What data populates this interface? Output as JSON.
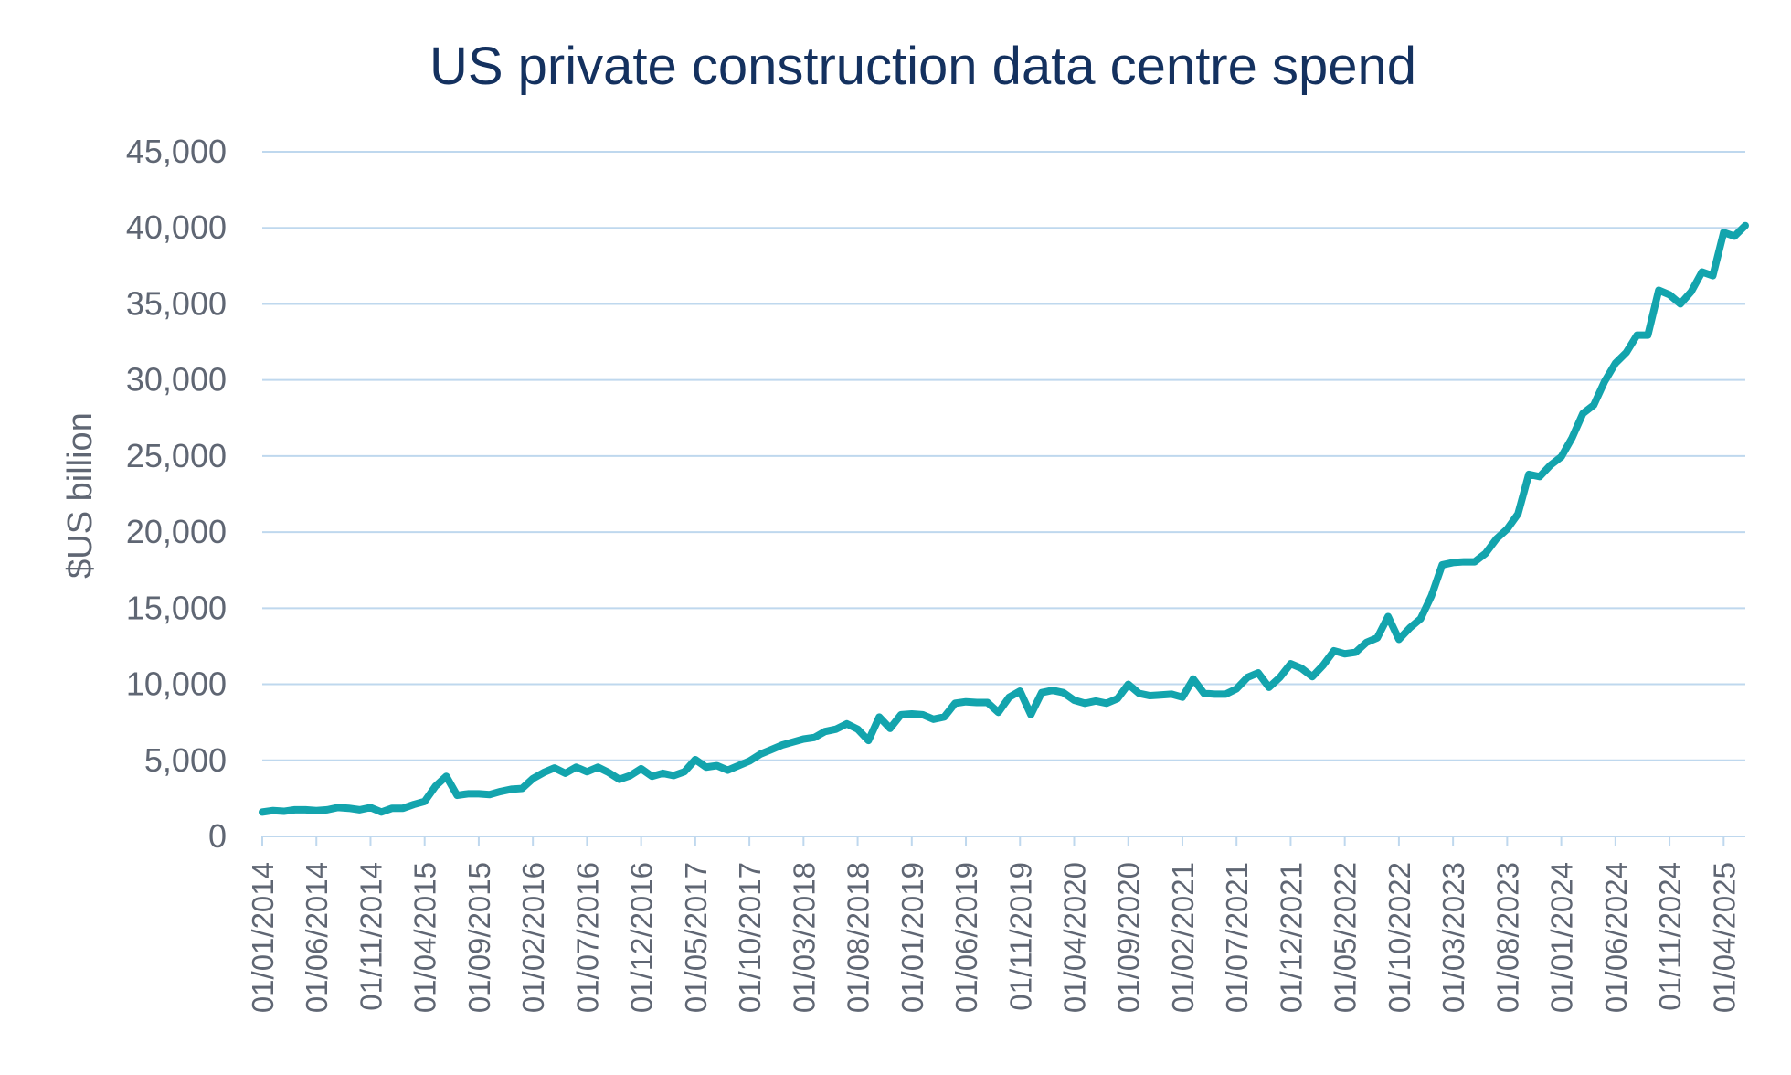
{
  "chart_data": {
    "type": "line",
    "title": "US private construction data centre spend",
    "xlabel": "",
    "ylabel": "$US billion",
    "ylim": [
      0,
      45000
    ],
    "yticks": [
      0,
      5000,
      10000,
      15000,
      20000,
      25000,
      30000,
      35000,
      40000,
      45000
    ],
    "ytick_labels": [
      "0",
      "5,000",
      "10,000",
      "15,000",
      "20,000",
      "25,000",
      "30,000",
      "35,000",
      "40,000",
      "45,000"
    ],
    "xtick_labels": [
      "01/01/2014",
      "01/06/2014",
      "01/11/2014",
      "01/04/2015",
      "01/09/2015",
      "01/02/2016",
      "01/07/2016",
      "01/12/2016",
      "01/05/2017",
      "01/10/2017",
      "01/03/2018",
      "01/08/2018",
      "01/01/2019",
      "01/06/2019",
      "01/11/2019",
      "01/04/2020",
      "01/09/2020",
      "01/02/2021",
      "01/07/2021",
      "01/12/2021",
      "01/05/2022",
      "01/10/2022",
      "01/03/2023",
      "01/08/2023",
      "01/01/2024",
      "01/06/2024",
      "01/11/2024",
      "01/04/2025"
    ],
    "xtick_interval_months": 5,
    "x_start": "01/01/2014",
    "grid": true,
    "line_color": "#13a4ad",
    "series": [
      {
        "name": "US private construction data centre spend",
        "values": [
          1600,
          1700,
          1650,
          1750,
          1750,
          1700,
          1750,
          1900,
          1850,
          1750,
          1900,
          1600,
          1850,
          1850,
          2100,
          2300,
          3300,
          3950,
          2700,
          2800,
          2800,
          2750,
          2950,
          3100,
          3150,
          3800,
          4200,
          4500,
          4150,
          4550,
          4250,
          4550,
          4200,
          3750,
          4000,
          4450,
          3950,
          4150,
          4000,
          4250,
          5050,
          4550,
          4650,
          4350,
          4650,
          4950,
          5400,
          5700,
          6000,
          6200,
          6400,
          6500,
          6900,
          7050,
          7400,
          7050,
          6300,
          7850,
          7100,
          8000,
          8050,
          8000,
          7700,
          7850,
          8750,
          8850,
          8800,
          8800,
          8150,
          9150,
          9550,
          8000,
          9450,
          9600,
          9450,
          8950,
          8750,
          8900,
          8750,
          9050,
          10000,
          9400,
          9250,
          9300,
          9350,
          9150,
          10350,
          9400,
          9350,
          9350,
          9700,
          10450,
          10750,
          9800,
          10450,
          11350,
          11050,
          10500,
          11250,
          12200,
          12000,
          12100,
          12750,
          13050,
          14450,
          12950,
          13700,
          14300,
          15800,
          17850,
          18000,
          18050,
          18050,
          18600,
          19550,
          20200,
          21200,
          23800,
          23650,
          24400,
          24950,
          26200,
          27800,
          28350,
          29900,
          31100,
          31800,
          32950,
          32950,
          35900,
          35600,
          35000,
          35800,
          37100,
          36850,
          39700,
          39450,
          40150
        ]
      }
    ]
  }
}
